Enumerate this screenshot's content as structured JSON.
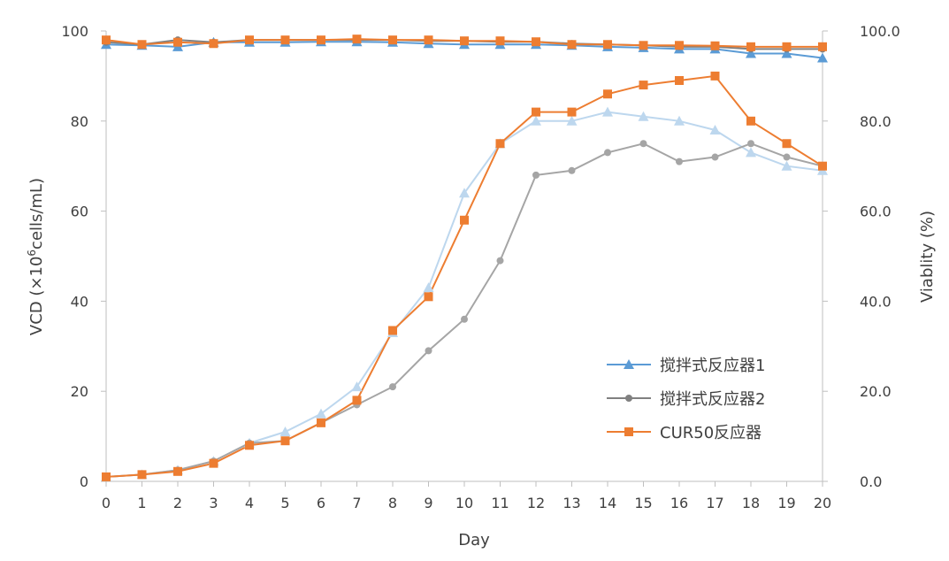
{
  "chart_data": {
    "type": "line",
    "x": [
      0,
      1,
      2,
      3,
      4,
      5,
      6,
      7,
      8,
      9,
      10,
      11,
      12,
      13,
      14,
      15,
      16,
      17,
      18,
      19,
      20
    ],
    "xlabel": "Day",
    "xlim": [
      0,
      20
    ],
    "ylabel_left": {
      "pre": "VCD (×10",
      "sup": "6",
      "post": "cells/mL)"
    },
    "ylim_left": [
      0,
      100
    ],
    "yticks_left": [
      "0",
      "20",
      "40",
      "60",
      "80",
      "100"
    ],
    "ylabel_right": "Viablity (%)",
    "ylim_right": [
      0,
      100
    ],
    "yticks_right": [
      "0.0",
      "20.0",
      "40.0",
      "60.0",
      "80.0",
      "100.0"
    ],
    "legend_position": "bottom-right",
    "series": [
      {
        "name": "搅拌式反应器1",
        "marker": "triangle",
        "color": "#5B9BD5",
        "vcd_color": "#BDD7EE",
        "vcd": [
          1.0,
          1.5,
          2.5,
          4.5,
          8.5,
          11,
          15,
          21,
          33,
          43,
          64,
          75,
          80,
          80,
          82,
          81,
          80,
          78,
          73,
          70,
          69
        ],
        "viability": [
          97,
          96.8,
          96.5,
          97.5,
          97.5,
          97.5,
          97.6,
          97.6,
          97.5,
          97.2,
          97,
          97,
          97,
          96.8,
          96.5,
          96.3,
          96,
          96,
          95,
          95,
          94
        ]
      },
      {
        "name": "搅拌式反应器2",
        "marker": "circle",
        "color": "#808080",
        "vcd_color": "#A5A5A5",
        "vcd": [
          1.0,
          1.5,
          2.5,
          4.5,
          8.5,
          9,
          13,
          17,
          21,
          29,
          36,
          49,
          68,
          69,
          73,
          75,
          71,
          72,
          75,
          72,
          70
        ],
        "viability": [
          97.5,
          97,
          98,
          97.5,
          98,
          98,
          98,
          98,
          98,
          97.8,
          97.8,
          97.6,
          97.6,
          97.2,
          97,
          96.8,
          96.5,
          96.5,
          96,
          96,
          96
        ]
      },
      {
        "name": "CUR50反应器",
        "marker": "square",
        "color": "#ED7D31",
        "vcd_color": "#ED7D31",
        "vcd": [
          1.0,
          1.5,
          2.2,
          4.0,
          8.0,
          9,
          13,
          18,
          33.5,
          41,
          58,
          75,
          82,
          82,
          86,
          88,
          89,
          90,
          80,
          75,
          70
        ],
        "viability": [
          98,
          97,
          97.5,
          97.2,
          98,
          98,
          98,
          98.2,
          98,
          98,
          97.8,
          97.8,
          97.6,
          97,
          97,
          96.8,
          96.8,
          96.7,
          96.5,
          96.5,
          96.5
        ]
      }
    ]
  }
}
